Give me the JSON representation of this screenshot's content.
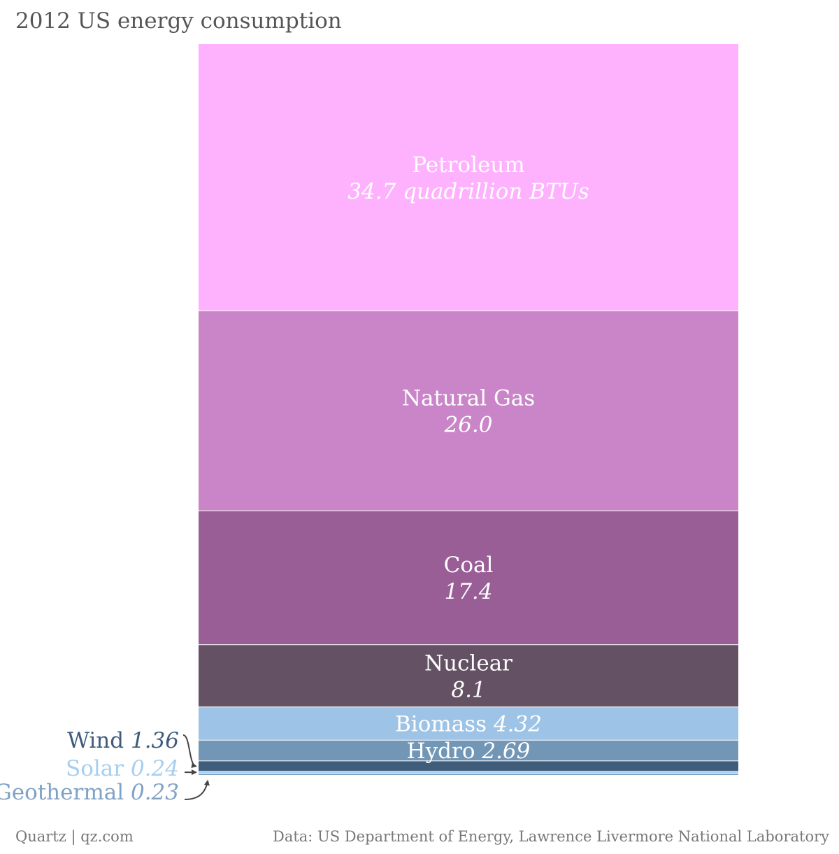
{
  "chart_data": {
    "type": "stacked-bar",
    "title": "2012 US energy consumption",
    "unit_label": "quadrillion BTUs",
    "segments": [
      {
        "name": "Petroleum",
        "value": 34.7,
        "value_label": "34.7 quadrillion BTUs",
        "color": "#FEB2FE",
        "label_mode": "inside-two-line"
      },
      {
        "name": "Natural Gas",
        "value": 26.0,
        "value_label": "26.0",
        "color": "#CA85C9",
        "label_mode": "inside-two-line"
      },
      {
        "name": "Coal",
        "value": 17.4,
        "value_label": "17.4",
        "color": "#985E95",
        "label_mode": "inside-two-line"
      },
      {
        "name": "Nuclear",
        "value": 8.1,
        "value_label": "8.1",
        "color": "#645264",
        "label_mode": "inside-two-line"
      },
      {
        "name": "Biomass",
        "value": 4.32,
        "value_label": "4.32",
        "color": "#9DC3E6",
        "label_mode": "inside-one-line"
      },
      {
        "name": "Hydro",
        "value": 2.69,
        "value_label": "2.69",
        "color": "#7296B6",
        "label_mode": "inside-one-line"
      },
      {
        "name": "Wind",
        "value": 1.36,
        "value_label": "1.36",
        "color": "#3F5C7B",
        "label_mode": "outside",
        "label_color": "#3F5C7B"
      },
      {
        "name": "Solar",
        "value": 0.24,
        "value_label": "0.24",
        "color": "#A5CFF1",
        "label_mode": "outside",
        "label_color": "#A5CFF1"
      },
      {
        "name": "Geothermal",
        "value": 0.23,
        "value_label": "0.23",
        "color": "#7FA2C5",
        "label_mode": "outside",
        "label_color": "#7FA2C5"
      }
    ]
  },
  "footer": {
    "left": "Quartz | qz.com",
    "right": "Data: US Department of Energy, Lawrence Livermore National Laboratory"
  }
}
